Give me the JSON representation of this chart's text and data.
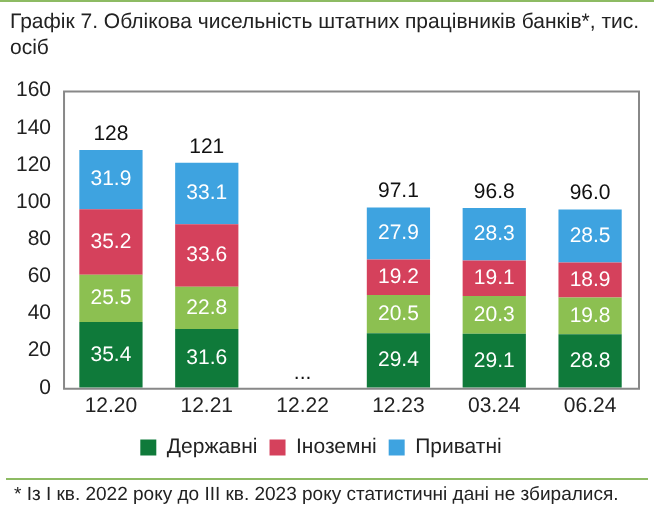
{
  "chart_data": {
    "type": "bar",
    "title": "Графік 7. Облікова чисельність штатних працівників банків*, тис. осіб",
    "categories": [
      "12.20",
      "12.21",
      "12.22",
      "12.23",
      "03.24",
      "06.24"
    ],
    "stacked": true,
    "series": [
      {
        "name": "Державні",
        "color": "#0f7a3a",
        "values": [
          35.4,
          31.6,
          null,
          29.4,
          29.1,
          28.8
        ]
      },
      {
        "color": "#8cc051",
        "values": [
          25.5,
          22.8,
          null,
          20.5,
          20.3,
          19.8
        ]
      },
      {
        "name": "Іноземні",
        "color": "#d5415c",
        "values": [
          35.2,
          33.6,
          null,
          19.2,
          19.1,
          18.9
        ]
      },
      {
        "name": "Приватні",
        "color": "#3ea3e0",
        "values": [
          31.9,
          33.1,
          null,
          27.9,
          28.3,
          28.5
        ]
      }
    ],
    "totals": [
      "128",
      "121",
      null,
      "97.1",
      "96.8",
      "96.0"
    ],
    "data_labels": true,
    "ylim": [
      0,
      160
    ],
    "yticks": [
      0,
      20,
      40,
      60,
      80,
      100,
      120,
      140,
      160
    ],
    "grid": false,
    "legend": "bottom",
    "annotations": [
      "...",
      "* Із І кв. 2022 року до ІІІ кв. 2023 року статистичні дані не збиралися."
    ]
  }
}
